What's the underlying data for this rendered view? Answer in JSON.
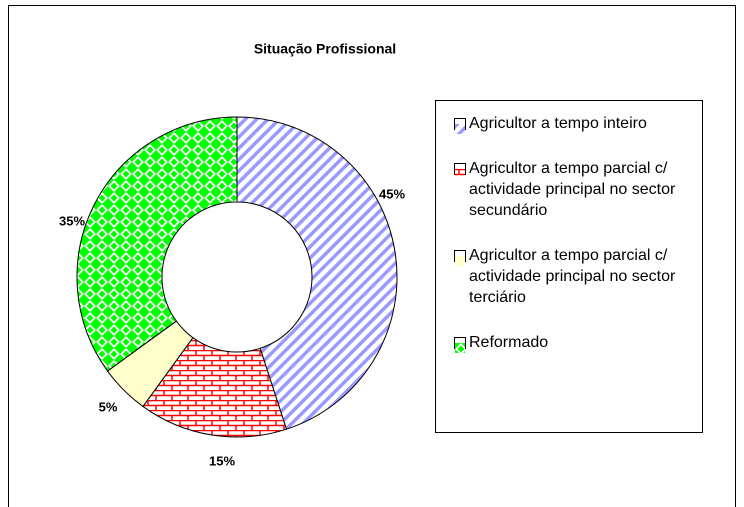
{
  "chart_data": {
    "type": "donut",
    "title": "Situação Profissional",
    "categories": [
      "Agricultor a tempo inteiro",
      "Agricultor a tempo parcial c/ actividade principal no sector secundário",
      "Agricultor a tempo parcial c/ actividade principal no sector terciário",
      "Reformado"
    ],
    "values": [
      45,
      15,
      5,
      35
    ],
    "value_labels": [
      "45%",
      "15%",
      "5%",
      "35%"
    ],
    "colors": [
      "#9999ff",
      "#ff0000",
      "#ffffcc",
      "#00ff00"
    ]
  }
}
